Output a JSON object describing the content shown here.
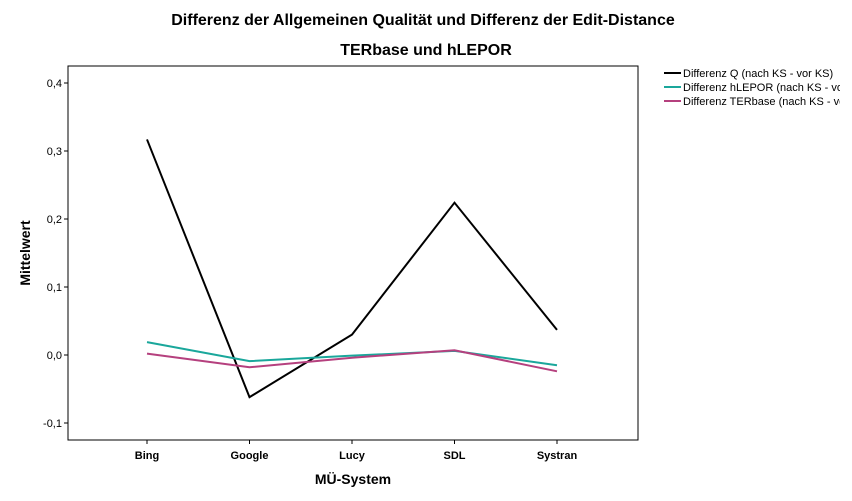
{
  "chart_data": {
    "type": "line",
    "title_line1": "Differenz der Allgemeinen Qualität und Differenz der Edit-Distance",
    "title_line2": "TERbase und hLEPOR",
    "xlabel": "MÜ-System",
    "ylabel": "Mittelwert",
    "categories": [
      "Bing",
      "Google",
      "Lucy",
      "SDL",
      "Systran"
    ],
    "ylim": [
      -0.125,
      0.425
    ],
    "yticks": [
      -0.1,
      0.0,
      0.1,
      0.2,
      0.3,
      0.4
    ],
    "ytick_labels": [
      "-0,1",
      "0,0",
      "0,1",
      "0,2",
      "0,3",
      "0,4"
    ],
    "grid": false,
    "legend_position": "top-right, outside plot",
    "series": [
      {
        "name": "Differenz Q (nach KS - vor KS)",
        "color": "#000000",
        "values": [
          0.317,
          -0.062,
          0.03,
          0.224,
          0.037
        ]
      },
      {
        "name": "Differenz hLEPOR (nach KS - vor KS)",
        "color": "#1aa79b",
        "values": [
          0.019,
          -0.009,
          -0.001,
          0.006,
          -0.015
        ]
      },
      {
        "name": "Differenz TERbase (nach KS - vor KS)",
        "color": "#b5407e",
        "values": [
          0.002,
          -0.018,
          -0.004,
          0.007,
          -0.024
        ]
      }
    ]
  }
}
